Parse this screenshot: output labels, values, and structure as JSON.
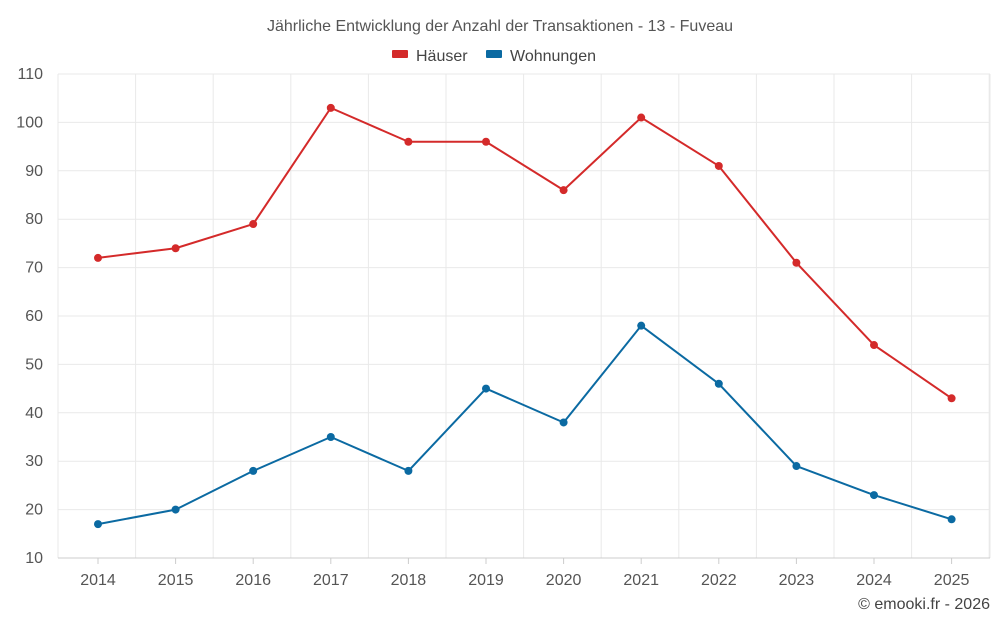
{
  "chart_data": {
    "type": "line",
    "title": "Jährliche Entwicklung der Anzahl der Transaktionen - 13 - Fuveau",
    "categories": [
      "2014",
      "2015",
      "2016",
      "2017",
      "2018",
      "2019",
      "2020",
      "2021",
      "2022",
      "2023",
      "2024",
      "2025"
    ],
    "series": [
      {
        "name": "Häuser",
        "color": "#d42a2a",
        "values": [
          72,
          74,
          79,
          103,
          96,
          96,
          86,
          101,
          91,
          71,
          54,
          43
        ]
      },
      {
        "name": "Wohnungen",
        "color": "#0b6aa2",
        "values": [
          17,
          20,
          28,
          35,
          28,
          45,
          38,
          58,
          46,
          29,
          23,
          18
        ]
      }
    ],
    "ylim": [
      10,
      110
    ],
    "yticks": [
      10,
      20,
      30,
      40,
      50,
      60,
      70,
      80,
      90,
      100,
      110
    ],
    "grid": true,
    "legend_position": "top-center"
  },
  "credit": "© emooki.fr - 2026"
}
